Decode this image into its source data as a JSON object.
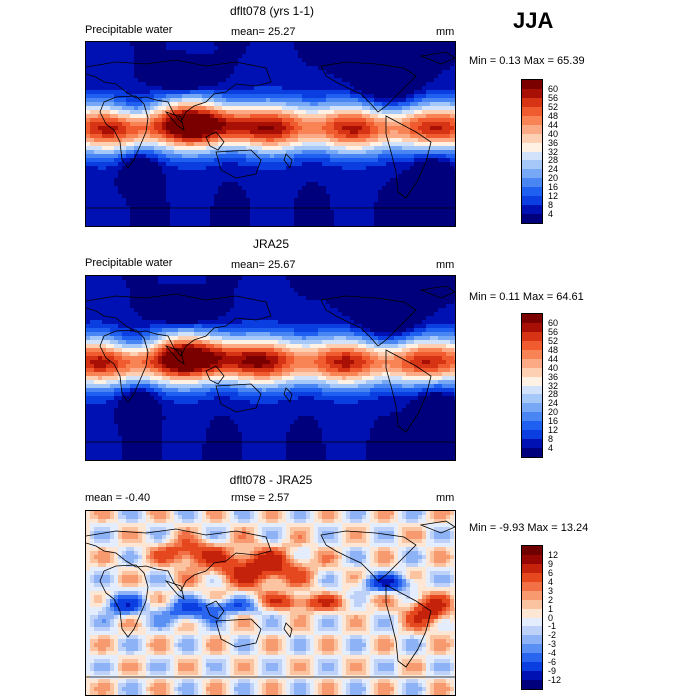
{
  "season": "JJA",
  "palette_abs": [
    "#00007d",
    "#0011b4",
    "#0a3ee0",
    "#2060f0",
    "#4a86f3",
    "#76a8f5",
    "#a6c8f8",
    "#d2e2fb",
    "#fff2e4",
    "#fdd0b4",
    "#fbaa85",
    "#f88456",
    "#f05c30",
    "#d63414",
    "#a80f05",
    "#7a0000"
  ],
  "palette_diff": [
    "#00007d",
    "#0011b4",
    "#0a3ee0",
    "#2a65f0",
    "#5a8ff3",
    "#8db2f6",
    "#bed2f9",
    "#e4edfd",
    "#fde6d4",
    "#fbc3a0",
    "#f89a70",
    "#f27045",
    "#e5471f",
    "#c4220a",
    "#960602",
    "#700000"
  ],
  "panels": [
    {
      "title": "dflt078 (yrs 1-1)",
      "left_label": "Precipitable water",
      "mid_label": "mean=  25.27",
      "right_label": "mm",
      "minmax": "Min =    0.13  Max =   65.39",
      "levels": [
        "60",
        "56",
        "52",
        "48",
        "44",
        "40",
        "36",
        "32",
        "28",
        "24",
        "20",
        "16",
        "12",
        "8",
        "4"
      ],
      "icon": "precipitable-water-map-icon"
    },
    {
      "title": "JRA25",
      "left_label": "Precipitable water",
      "mid_label": "mean=  25.67",
      "right_label": "mm",
      "minmax": "Min =    0.11  Max =   64.61",
      "levels": [
        "60",
        "56",
        "52",
        "48",
        "44",
        "40",
        "36",
        "32",
        "28",
        "24",
        "20",
        "16",
        "12",
        "8",
        "4"
      ],
      "icon": "precipitable-water-map-icon"
    },
    {
      "title": "dflt078 - JRA25",
      "left_label": "mean =   -0.40",
      "mid_label": "rmse =    2.57",
      "right_label": "mm",
      "minmax": "Min =  -9.93  Max =   13.24",
      "levels": [
        "12",
        "9",
        "6",
        "4",
        "3",
        "2",
        "1",
        "0",
        "-1",
        "-2",
        "-3",
        "-4",
        "-6",
        "-9",
        "-12"
      ],
      "icon": "difference-map-icon"
    }
  ]
}
